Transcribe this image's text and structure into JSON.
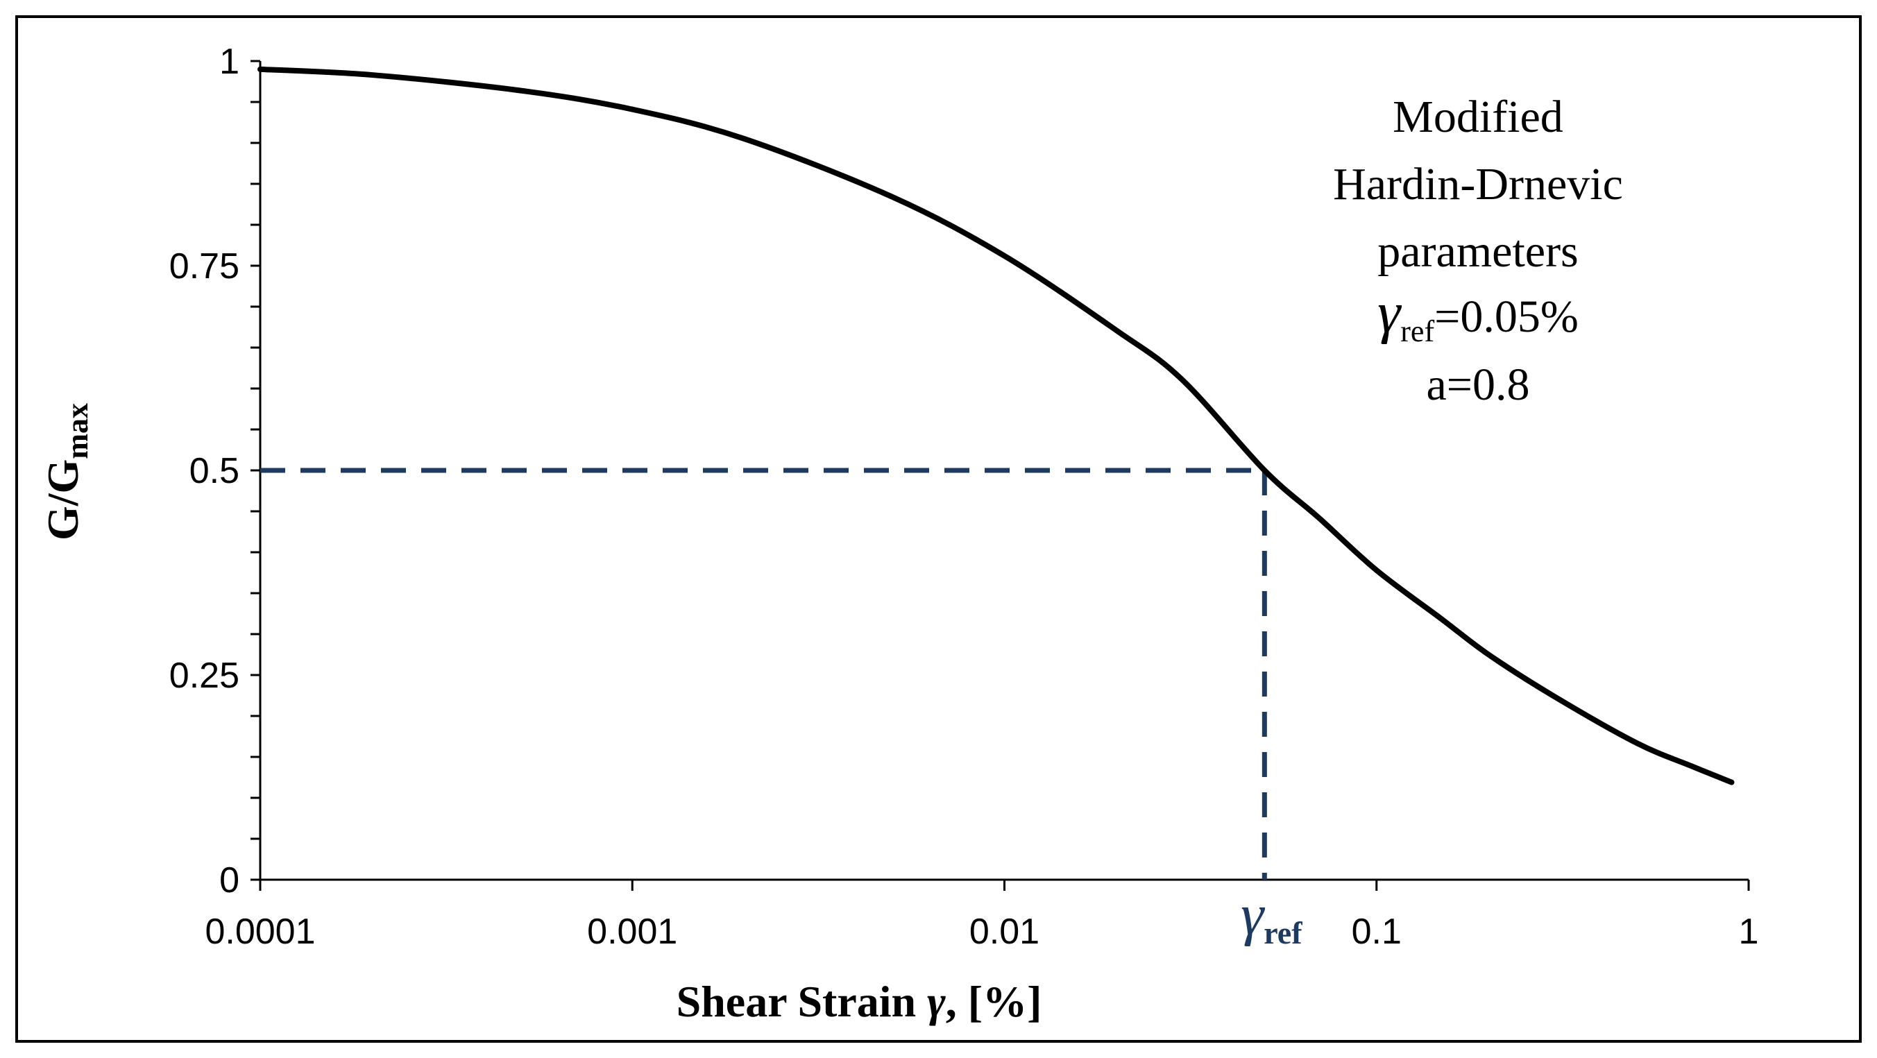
{
  "chart_data": {
    "type": "line",
    "x_scale": "log",
    "xlabel": {
      "main": "Shear Strain ",
      "symbol": "γ",
      "tail": ",  [%]"
    },
    "ylabel": {
      "main": "G/G",
      "sub": "max"
    },
    "xlim": [
      0.0001,
      1
    ],
    "ylim": [
      0,
      1
    ],
    "x_ticks": [
      0.0001,
      0.001,
      0.01,
      0.1,
      1
    ],
    "x_tick_labels": [
      "0.0001",
      "0.001",
      "0.01",
      "0.1",
      "1"
    ],
    "y_ticks": [
      0,
      0.25,
      0.5,
      0.75,
      1
    ],
    "y_tick_labels": [
      "0",
      "0.25",
      "0.5",
      "0.75",
      "1"
    ],
    "y_minor_step": 0.05,
    "grid": false,
    "series": [
      {
        "name": "Modified Hardin-Drnevic curve",
        "color": "#000000",
        "x": [
          0.0001,
          0.0002,
          0.0005,
          0.001,
          0.002,
          0.005,
          0.01,
          0.02,
          0.03,
          0.05,
          0.07,
          0.1,
          0.15,
          0.2,
          0.3,
          0.5,
          0.7,
          0.9
        ],
        "y": [
          0.99,
          0.983,
          0.964,
          0.941,
          0.905,
          0.834,
          0.762,
          0.671,
          0.611,
          0.5,
          0.442,
          0.378,
          0.318,
          0.275,
          0.224,
          0.167,
          0.139,
          0.119
        ]
      }
    ],
    "reference": {
      "x": 0.05,
      "y": 0.5,
      "color": "#1f3a5f",
      "label": {
        "symbol": "γ",
        "sub": "ref"
      }
    },
    "annotation": {
      "lines": [
        "Modified",
        "Hardin-Drnevic",
        "parameters"
      ],
      "gamma_symbol": "γ",
      "gamma_sub": "ref",
      "gamma_value": "=0.05%",
      "a_line": "a=0.8"
    }
  }
}
